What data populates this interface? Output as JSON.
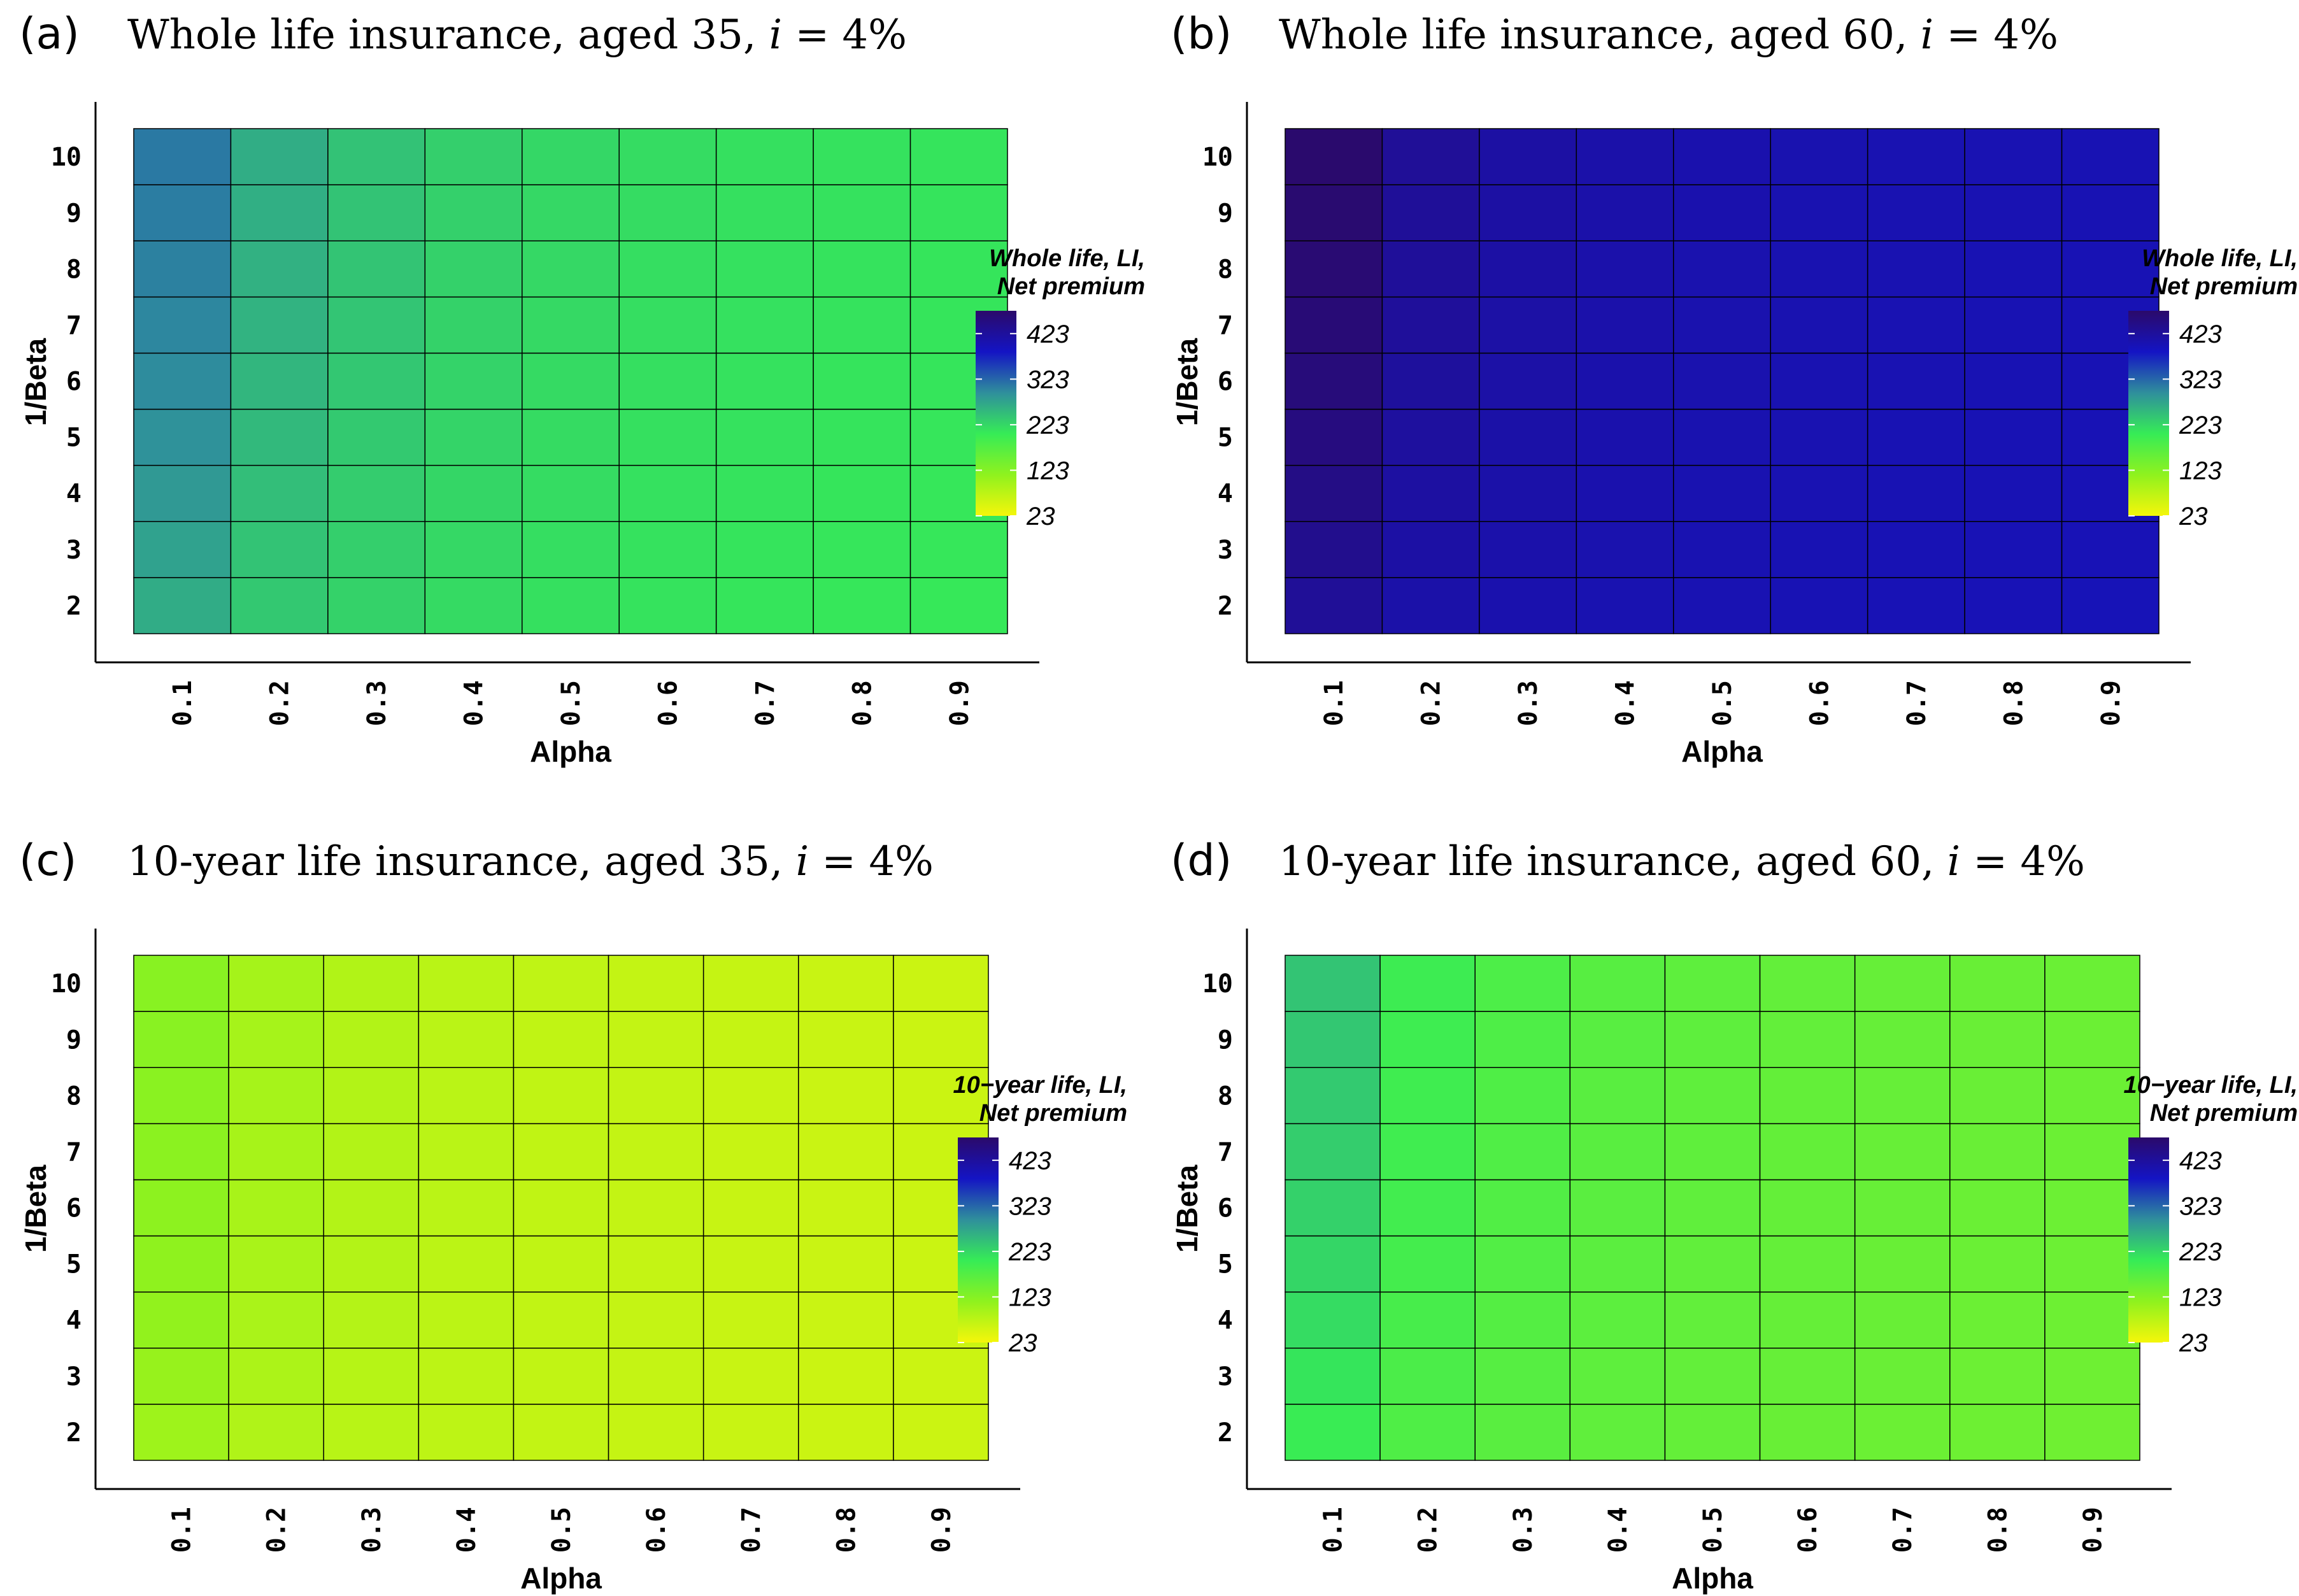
{
  "chart_data": [
    {
      "type": "heatmap",
      "panel_label": "(a)",
      "title_text": "Whole life insurance, aged 35,",
      "title_var": "i",
      "title_eq": "= 4%",
      "xlabel": "Alpha",
      "ylabel": "1/Beta",
      "x_categories": [
        "0.1",
        "0.2",
        "0.3",
        "0.4",
        "0.5",
        "0.6",
        "0.7",
        "0.8",
        "0.9"
      ],
      "y_categories": [
        "2",
        "3",
        "4",
        "5",
        "6",
        "7",
        "8",
        "9",
        "10"
      ],
      "values": [
        [
          265,
          238,
          228,
          220,
          215,
          212,
          210,
          208,
          207
        ],
        [
          275,
          243,
          231,
          222,
          217,
          213,
          211,
          209,
          208
        ],
        [
          283,
          248,
          234,
          224,
          218,
          214,
          212,
          210,
          208
        ],
        [
          290,
          252,
          237,
          226,
          219,
          215,
          213,
          211,
          209
        ],
        [
          295,
          255,
          239,
          227,
          220,
          216,
          213,
          211,
          210
        ],
        [
          299,
          258,
          241,
          228,
          221,
          217,
          214,
          212,
          210
        ],
        [
          303,
          260,
          242,
          229,
          222,
          217,
          214,
          212,
          210
        ],
        [
          306,
          262,
          243,
          230,
          222,
          218,
          215,
          213,
          211
        ],
        [
          309,
          264,
          244,
          231,
          223,
          218,
          215,
          213,
          211
        ]
      ],
      "legend": {
        "title_line1": "Whole life, LI,",
        "title_line2": "Net premium",
        "ticks": [
          "423",
          "323",
          "223",
          "123",
          "23"
        ],
        "range": [
          23,
          473
        ]
      }
    },
    {
      "type": "heatmap",
      "panel_label": "(b)",
      "title_text": "Whole life insurance, aged 60,",
      "title_var": "i",
      "title_eq": "= 4%",
      "xlabel": "Alpha",
      "ylabel": "1/Beta",
      "x_categories": [
        "0.1",
        "0.2",
        "0.3",
        "0.4",
        "0.5",
        "0.6",
        "0.7",
        "0.8",
        "0.9"
      ],
      "y_categories": [
        "2",
        "3",
        "4",
        "5",
        "6",
        "7",
        "8",
        "9",
        "10"
      ],
      "values": [
        [
          428,
          411,
          406,
          403,
          401,
          399,
          398,
          397,
          396
        ],
        [
          438,
          415,
          409,
          405,
          402,
          400,
          399,
          398,
          397
        ],
        [
          446,
          418,
          411,
          406,
          403,
          401,
          400,
          399,
          398
        ],
        [
          452,
          421,
          412,
          407,
          404,
          402,
          400,
          399,
          398
        ],
        [
          457,
          423,
          413,
          408,
          405,
          402,
          401,
          400,
          399
        ],
        [
          461,
          425,
          414,
          409,
          405,
          403,
          401,
          400,
          399
        ],
        [
          464,
          426,
          415,
          409,
          405,
          403,
          402,
          400,
          399
        ],
        [
          467,
          427,
          416,
          410,
          406,
          403,
          402,
          401,
          400
        ],
        [
          470,
          428,
          416,
          410,
          406,
          404,
          402,
          401,
          400
        ]
      ],
      "legend": {
        "title_line1": "Whole life, LI,",
        "title_line2": "Net premium",
        "ticks": [
          "423",
          "323",
          "223",
          "123",
          "23"
        ],
        "range": [
          23,
          473
        ]
      }
    },
    {
      "type": "heatmap",
      "panel_label": "(c)",
      "title_text": "10-year life insurance, aged 35,",
      "title_var": "i",
      "title_eq": "= 4%",
      "xlabel": "Alpha",
      "ylabel": "1/Beta",
      "x_categories": [
        "0.1",
        "0.2",
        "0.3",
        "0.4",
        "0.5",
        "0.6",
        "0.7",
        "0.8",
        "0.9"
      ],
      "y_categories": [
        "2",
        "3",
        "4",
        "5",
        "6",
        "7",
        "8",
        "9",
        "10"
      ],
      "values": [
        [
          100,
          84,
          77,
          72,
          68,
          65,
          63,
          61,
          60
        ],
        [
          106,
          87,
          79,
          73,
          69,
          66,
          63,
          61,
          60
        ],
        [
          110,
          89,
          80,
          74,
          69,
          66,
          64,
          62,
          60
        ],
        [
          113,
          90,
          81,
          74,
          70,
          66,
          64,
          62,
          61
        ],
        [
          115,
          91,
          81,
          75,
          70,
          67,
          64,
          62,
          61
        ],
        [
          117,
          92,
          82,
          75,
          70,
          67,
          64,
          62,
          61
        ],
        [
          118,
          93,
          82,
          75,
          70,
          67,
          64,
          62,
          61
        ],
        [
          119,
          93,
          82,
          75,
          70,
          67,
          65,
          63,
          61
        ],
        [
          120,
          94,
          83,
          76,
          71,
          67,
          65,
          63,
          61
        ]
      ],
      "legend": {
        "title_line1": "10−year life, LI,",
        "title_line2": "Net premium",
        "ticks": [
          "423",
          "323",
          "223",
          "123",
          "23"
        ],
        "range": [
          23,
          473
        ]
      }
    },
    {
      "type": "heatmap",
      "panel_label": "(d)",
      "title_text": "10-year life insurance, aged 60,",
      "title_var": "i",
      "title_eq": "= 4%",
      "xlabel": "Alpha",
      "ylabel": "1/Beta",
      "x_categories": [
        "0.1",
        "0.2",
        "0.3",
        "0.4",
        "0.5",
        "0.6",
        "0.7",
        "0.8",
        "0.9"
      ],
      "y_categories": [
        "2",
        "3",
        "4",
        "5",
        "6",
        "7",
        "8",
        "9",
        "10"
      ],
      "values": [
        [
          200,
          178,
          168,
          161,
          156,
          152,
          149,
          147,
          145
        ],
        [
          210,
          182,
          171,
          163,
          158,
          154,
          151,
          148,
          146
        ],
        [
          218,
          186,
          173,
          165,
          159,
          155,
          152,
          149,
          147
        ],
        [
          224,
          189,
          175,
          166,
          160,
          156,
          152,
          150,
          148
        ],
        [
          229,
          191,
          176,
          167,
          161,
          156,
          153,
          150,
          148
        ],
        [
          233,
          193,
          177,
          168,
          162,
          157,
          153,
          151,
          149
        ],
        [
          236,
          194,
          178,
          168,
          162,
          157,
          154,
          151,
          149
        ],
        [
          239,
          195,
          179,
          169,
          163,
          158,
          154,
          151,
          149
        ],
        [
          242,
          196,
          180,
          170,
          163,
          158,
          154,
          152,
          150
        ]
      ],
      "legend": {
        "title_line1": "10−year life, LI,",
        "title_line2": "Net premium",
        "ticks": [
          "423",
          "323",
          "223",
          "123",
          "23"
        ],
        "range": [
          23,
          473
        ]
      }
    }
  ],
  "colors": {
    "scale": [
      "#f5f60a",
      "#8ff21e",
      "#36ec56",
      "#2f8f9c",
      "#1414c4",
      "#2b0a6a"
    ],
    "grid_line": "#000000",
    "axis": "#000000"
  }
}
